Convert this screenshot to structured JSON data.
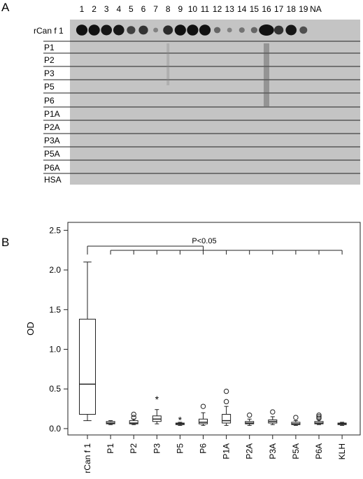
{
  "panel_a": {
    "label": "A",
    "lanes": [
      "1",
      "2",
      "3",
      "4",
      "5",
      "6",
      "7",
      "8",
      "9",
      "10",
      "11",
      "12",
      "13",
      "14",
      "15",
      "16",
      "17",
      "18",
      "19",
      "NA"
    ],
    "rows": [
      "rCan f 1",
      "P1",
      "P2",
      "P3",
      "P5",
      "P6",
      "P1A",
      "P2A",
      "P3A",
      "P5A",
      "P6A",
      "HSA"
    ],
    "spot_intensity": [
      0.95,
      0.95,
      0.9,
      0.9,
      0.6,
      0.7,
      0.15,
      0.75,
      0.95,
      0.95,
      0.95,
      0.35,
      0.15,
      0.25,
      0.35,
      1.0,
      0.7,
      0.9,
      0.5,
      0.0
    ],
    "background_color": "#c4c4c4",
    "spot_color": "#111111"
  },
  "chart_data": {
    "type": "box",
    "panel_label": "B",
    "ylabel": "OD",
    "xlabel": "",
    "ylim": [
      -0.08,
      2.6
    ],
    "yticks": [
      "0.0",
      "0.5",
      "1.0",
      "1.5",
      "2.0",
      "2.5"
    ],
    "categories": [
      "rCan f 1",
      "P1",
      "P2",
      "P3",
      "P5",
      "P6",
      "P1A",
      "P2A",
      "P3A",
      "P5A",
      "P6A",
      "KLH"
    ],
    "boxes": [
      {
        "min": 0.1,
        "q1": 0.18,
        "median": 0.56,
        "q3": 1.38,
        "max": 2.1,
        "outliers": [],
        "extremes": []
      },
      {
        "min": 0.05,
        "q1": 0.06,
        "median": 0.07,
        "q3": 0.09,
        "max": 0.1,
        "outliers": [],
        "extremes": []
      },
      {
        "min": 0.05,
        "q1": 0.06,
        "median": 0.07,
        "q3": 0.1,
        "max": 0.12,
        "outliers": [
          0.14,
          0.18
        ],
        "extremes": []
      },
      {
        "min": 0.06,
        "q1": 0.09,
        "median": 0.12,
        "q3": 0.16,
        "max": 0.24,
        "outliers": [],
        "extremes": [
          0.38
        ]
      },
      {
        "min": 0.04,
        "q1": 0.05,
        "median": 0.06,
        "q3": 0.07,
        "max": 0.08,
        "outliers": [],
        "extremes": [
          0.12
        ]
      },
      {
        "min": 0.04,
        "q1": 0.06,
        "median": 0.08,
        "q3": 0.12,
        "max": 0.2,
        "outliers": [
          0.28
        ],
        "extremes": []
      },
      {
        "min": 0.04,
        "q1": 0.07,
        "median": 0.1,
        "q3": 0.18,
        "max": 0.28,
        "outliers": [
          0.34,
          0.47
        ],
        "extremes": []
      },
      {
        "min": 0.04,
        "q1": 0.06,
        "median": 0.07,
        "q3": 0.09,
        "max": 0.12,
        "outliers": [
          0.17
        ],
        "extremes": []
      },
      {
        "min": 0.05,
        "q1": 0.07,
        "median": 0.09,
        "q3": 0.11,
        "max": 0.15,
        "outliers": [
          0.21
        ],
        "extremes": []
      },
      {
        "min": 0.04,
        "q1": 0.05,
        "median": 0.06,
        "q3": 0.08,
        "max": 0.1,
        "outliers": [
          0.14
        ],
        "extremes": []
      },
      {
        "min": 0.05,
        "q1": 0.06,
        "median": 0.07,
        "q3": 0.09,
        "max": 0.11,
        "outliers": [
          0.13,
          0.15,
          0.17
        ],
        "extremes": []
      },
      {
        "min": 0.04,
        "q1": 0.05,
        "median": 0.06,
        "q3": 0.07,
        "max": 0.08,
        "outliers": [],
        "extremes": []
      }
    ],
    "annotation": "P<0.05",
    "grid": false,
    "legend": "none"
  }
}
